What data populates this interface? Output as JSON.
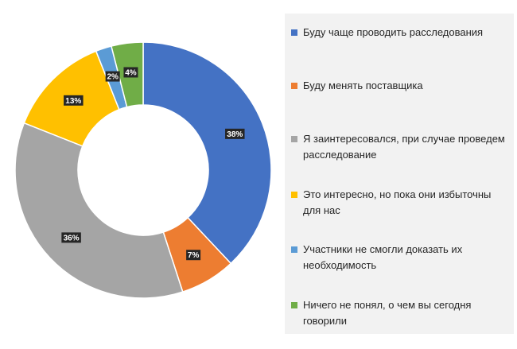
{
  "chart_data": {
    "type": "pie",
    "donut": true,
    "title": "",
    "legend_position": "right",
    "categories": [
      "Буду чаще проводить расследования",
      "Буду менять поставщика",
      "Я заинтересовался, при случае проведем расследование",
      "Это интересно, но пока они избыточны для нас",
      "Участники не смогли доказать их необходимость",
      "Ничего не понял, о чем вы сегодня говорили"
    ],
    "values": [
      38,
      7,
      36,
      13,
      2,
      4
    ],
    "value_labels": [
      "38%",
      "7%",
      "36%",
      "13%",
      "2%",
      "4%"
    ],
    "colors": [
      "#4472c4",
      "#ed7d31",
      "#a5a5a5",
      "#ffc000",
      "#5b9bd5",
      "#70ad47"
    ]
  }
}
